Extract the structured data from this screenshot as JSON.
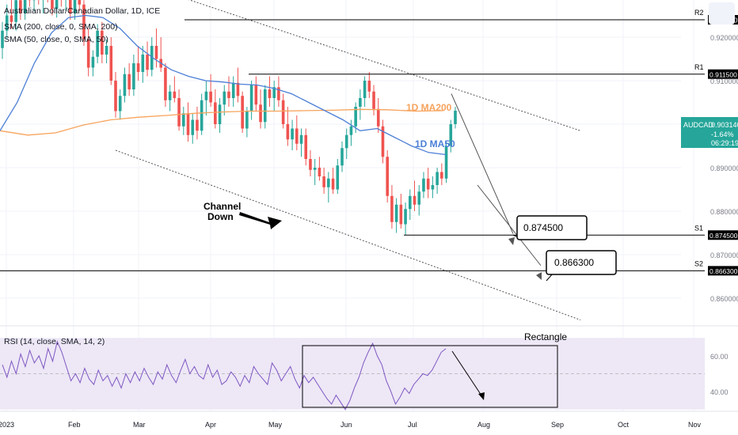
{
  "chart_data": {
    "type": "candlestick",
    "title": "Australian Dollar/Canadian Dollar, 1D, ICE",
    "indicators": [
      "SMA (200, close, 0, SMA, 200)",
      "SMA (50, close, 0, SMA, 50)"
    ],
    "price_axis": {
      "ticks": [
        "0.920000",
        "0.910000",
        "0.890000",
        "0.880000",
        "0.870000",
        "0.860000"
      ],
      "range": [
        0.853,
        0.934
      ]
    },
    "time_axis": {
      "labels": [
        "2023",
        "Feb",
        "Mar",
        "Apr",
        "May",
        "Jun",
        "Jul",
        "Aug",
        "Sep",
        "Oct",
        "Nov"
      ]
    },
    "symbol_label": {
      "name": "AUDCAD",
      "price": "0.903140",
      "change": "-1.64%",
      "countdown": "06:29:19",
      "value": 0.90314,
      "color": "#26a69a"
    },
    "ohlc": [
      [
        0.9175,
        0.9235,
        0.915,
        0.9215
      ],
      [
        0.9215,
        0.9275,
        0.9195,
        0.925
      ],
      [
        0.925,
        0.929,
        0.922,
        0.9235
      ],
      [
        0.9235,
        0.93,
        0.9215,
        0.9285
      ],
      [
        0.9285,
        0.932,
        0.924,
        0.9255
      ],
      [
        0.9255,
        0.931,
        0.924,
        0.93
      ],
      [
        0.93,
        0.933,
        0.927,
        0.9285
      ],
      [
        0.9285,
        0.933,
        0.926,
        0.9315
      ],
      [
        0.9315,
        0.9335,
        0.9275,
        0.929
      ],
      [
        0.929,
        0.932,
        0.9255,
        0.9305
      ],
      [
        0.9305,
        0.933,
        0.928,
        0.9295
      ],
      [
        0.9295,
        0.9325,
        0.925,
        0.9265
      ],
      [
        0.9265,
        0.931,
        0.9245,
        0.93
      ],
      [
        0.93,
        0.933,
        0.927,
        0.929
      ],
      [
        0.929,
        0.932,
        0.926,
        0.931
      ],
      [
        0.931,
        0.932,
        0.924,
        0.9255
      ],
      [
        0.9255,
        0.93,
        0.924,
        0.929
      ],
      [
        0.929,
        0.931,
        0.926,
        0.9275
      ],
      [
        0.9275,
        0.9285,
        0.918,
        0.9195
      ],
      [
        0.9195,
        0.922,
        0.911,
        0.913
      ],
      [
        0.913,
        0.917,
        0.911,
        0.9155
      ],
      [
        0.9155,
        0.923,
        0.914,
        0.9215
      ],
      [
        0.9215,
        0.9235,
        0.914,
        0.916
      ],
      [
        0.916,
        0.9195,
        0.914,
        0.918
      ],
      [
        0.918,
        0.92,
        0.909,
        0.91
      ],
      [
        0.91,
        0.912,
        0.9015,
        0.903
      ],
      [
        0.903,
        0.908,
        0.901,
        0.9065
      ],
      [
        0.9065,
        0.913,
        0.905,
        0.9115
      ],
      [
        0.9115,
        0.914,
        0.9065,
        0.908
      ],
      [
        0.908,
        0.916,
        0.9065,
        0.914
      ],
      [
        0.914,
        0.918,
        0.91,
        0.912
      ],
      [
        0.912,
        0.918,
        0.9095,
        0.916
      ],
      [
        0.916,
        0.919,
        0.911,
        0.9125
      ],
      [
        0.9125,
        0.92,
        0.911,
        0.918
      ],
      [
        0.918,
        0.922,
        0.913,
        0.915
      ],
      [
        0.915,
        0.92,
        0.912,
        0.913
      ],
      [
        0.913,
        0.914,
        0.904,
        0.9055
      ],
      [
        0.9055,
        0.909,
        0.903,
        0.9075
      ],
      [
        0.9075,
        0.911,
        0.905,
        0.906
      ],
      [
        0.906,
        0.908,
        0.8985,
        0.8995
      ],
      [
        0.8995,
        0.904,
        0.8975,
        0.9025
      ],
      [
        0.9025,
        0.905,
        0.896,
        0.8975
      ],
      [
        0.8975,
        0.9025,
        0.8955,
        0.901
      ],
      [
        0.901,
        0.904,
        0.8965,
        0.8985
      ],
      [
        0.8985,
        0.907,
        0.8975,
        0.9055
      ],
      [
        0.9055,
        0.91,
        0.902,
        0.9075
      ],
      [
        0.9075,
        0.9115,
        0.904,
        0.905
      ],
      [
        0.905,
        0.908,
        0.899,
        0.9
      ],
      [
        0.9,
        0.906,
        0.898,
        0.9045
      ],
      [
        0.9045,
        0.909,
        0.902,
        0.9075
      ],
      [
        0.9075,
        0.911,
        0.904,
        0.906
      ],
      [
        0.906,
        0.911,
        0.904,
        0.9095
      ],
      [
        0.9095,
        0.913,
        0.905,
        0.9065
      ],
      [
        0.9065,
        0.9075,
        0.898,
        0.899
      ],
      [
        0.899,
        0.904,
        0.897,
        0.903
      ],
      [
        0.903,
        0.91,
        0.901,
        0.909
      ],
      [
        0.909,
        0.911,
        0.903,
        0.9045
      ],
      [
        0.9045,
        0.908,
        0.899,
        0.9005
      ],
      [
        0.9005,
        0.909,
        0.899,
        0.908
      ],
      [
        0.908,
        0.911,
        0.904,
        0.906
      ],
      [
        0.906,
        0.91,
        0.903,
        0.9085
      ],
      [
        0.9085,
        0.911,
        0.904,
        0.9055
      ],
      [
        0.9055,
        0.907,
        0.899,
        0.9
      ],
      [
        0.9,
        0.904,
        0.895,
        0.8965
      ],
      [
        0.8965,
        0.901,
        0.894,
        0.899
      ],
      [
        0.899,
        0.902,
        0.894,
        0.8955
      ],
      [
        0.8955,
        0.899,
        0.8925,
        0.8975
      ],
      [
        0.8975,
        0.899,
        0.8905,
        0.892
      ],
      [
        0.892,
        0.894,
        0.888,
        0.8895
      ],
      [
        0.8895,
        0.892,
        0.886,
        0.89
      ],
      [
        0.89,
        0.8925,
        0.887,
        0.888
      ],
      [
        0.888,
        0.89,
        0.884,
        0.8855
      ],
      [
        0.8855,
        0.889,
        0.882,
        0.8875
      ],
      [
        0.8875,
        0.89,
        0.884,
        0.885
      ],
      [
        0.885,
        0.892,
        0.884,
        0.8905
      ],
      [
        0.8905,
        0.896,
        0.889,
        0.8945
      ],
      [
        0.8945,
        0.899,
        0.892,
        0.8975
      ],
      [
        0.8975,
        0.901,
        0.895,
        0.8995
      ],
      [
        0.8995,
        0.905,
        0.898,
        0.904
      ],
      [
        0.904,
        0.908,
        0.901,
        0.906
      ],
      [
        0.906,
        0.911,
        0.904,
        0.91
      ],
      [
        0.91,
        0.912,
        0.906,
        0.9075
      ],
      [
        0.9075,
        0.909,
        0.902,
        0.9035
      ],
      [
        0.9035,
        0.906,
        0.898,
        0.8995
      ],
      [
        0.8995,
        0.901,
        0.891,
        0.8925
      ],
      [
        0.8925,
        0.894,
        0.882,
        0.8835
      ],
      [
        0.8835,
        0.886,
        0.876,
        0.8775
      ],
      [
        0.8775,
        0.883,
        0.875,
        0.8815
      ],
      [
        0.8815,
        0.884,
        0.876,
        0.877
      ],
      [
        0.877,
        0.882,
        0.8745,
        0.8805
      ],
      [
        0.8805,
        0.885,
        0.878,
        0.8835
      ],
      [
        0.8835,
        0.887,
        0.88,
        0.8815
      ],
      [
        0.8815,
        0.886,
        0.879,
        0.8845
      ],
      [
        0.8845,
        0.889,
        0.883,
        0.8875
      ],
      [
        0.8875,
        0.89,
        0.883,
        0.885
      ],
      [
        0.885,
        0.888,
        0.883,
        0.886
      ],
      [
        0.886,
        0.89,
        0.884,
        0.889
      ],
      [
        0.889,
        0.891,
        0.886,
        0.8875
      ],
      [
        0.8875,
        0.896,
        0.8865,
        0.895
      ],
      [
        0.895,
        0.901,
        0.8935,
        0.9
      ],
      [
        0.9,
        0.904,
        0.899,
        0.9031
      ]
    ],
    "ma200": [
      0.8985,
      0.8975,
      0.898,
      0.8998,
      0.901,
      0.9016,
      0.902,
      0.9025,
      0.9028,
      0.903,
      0.903,
      0.9031,
      0.9032,
      0.9034,
      0.9033,
      0.903,
      0.9031
    ],
    "ma50": [
      0.8985,
      0.905,
      0.914,
      0.921,
      0.9245,
      0.925,
      0.9245,
      0.922,
      0.918,
      0.915,
      0.9125,
      0.911,
      0.91,
      0.9097,
      0.9092,
      0.909,
      0.9082,
      0.907,
      0.905,
      0.903,
      0.901,
      0.8985,
      0.899,
      0.897,
      0.895,
      0.8935,
      0.893
    ],
    "rsi": {
      "label": "RSI (14, close, SMA, 14, 2)",
      "ticks": [
        "60.00",
        "40.00"
      ],
      "values": [
        55,
        48,
        57,
        50,
        61,
        54,
        63,
        56,
        60,
        53,
        64,
        57,
        68,
        62,
        54,
        46,
        50,
        45,
        53,
        47,
        44,
        52,
        46,
        49,
        43,
        48,
        42,
        50,
        45,
        51,
        46,
        53,
        48,
        44,
        51,
        47,
        55,
        49,
        45,
        52,
        58,
        50,
        54,
        49,
        47,
        55,
        48,
        52,
        44,
        46,
        51,
        48,
        43,
        49,
        45,
        54,
        50,
        47,
        44,
        56,
        52,
        46,
        50,
        54,
        47,
        42,
        49,
        45,
        48,
        44,
        40,
        36,
        33,
        38,
        34,
        30,
        35,
        42,
        48,
        56,
        62,
        67,
        60,
        55,
        46,
        40,
        33,
        37,
        42,
        39,
        44,
        47,
        50,
        49,
        52,
        57,
        62,
        64
      ],
      "range_band": [
        30,
        70
      ]
    },
    "levels": [
      {
        "tag": "R2",
        "price": "0.924000",
        "value": 0.924
      },
      {
        "tag": "R1",
        "price": "0.911500",
        "value": 0.9115
      },
      {
        "tag": "S1",
        "price": "0.874500",
        "value": 0.8745
      },
      {
        "tag": "S2",
        "price": "0.866300",
        "value": 0.8663
      }
    ],
    "annotations": {
      "ma200_label": "1D MA200",
      "ma50_label": "1D MA50",
      "channel_label_line1": "Channel",
      "channel_label_line2": "Down",
      "target1": "0.874500",
      "target2": "0.866300",
      "rsi_label": "Rectangle"
    },
    "colors": {
      "up": "#26a69a",
      "down": "#ef5350",
      "ma200": "#f7a35c",
      "ma50": "#4c7fd6",
      "rsi_line": "#7e57c2",
      "rsi_band": "#ede7f6"
    }
  }
}
